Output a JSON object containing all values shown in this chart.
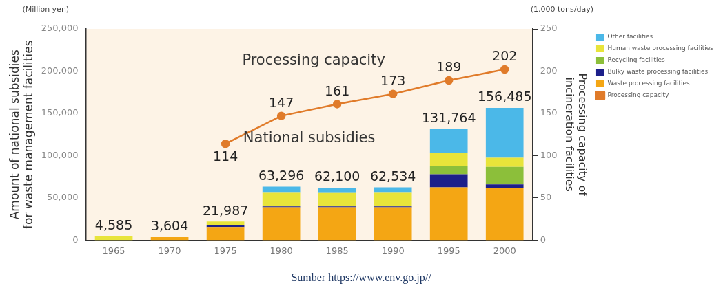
{
  "chart_data": {
    "type": "bar",
    "stacked": true,
    "ylabel": "Amount of national subsidies for waste management facilities",
    "y2label": "Processing capacity of incineration facilities",
    "categories": [
      "1965",
      "1970",
      "1975",
      "1980",
      "1985",
      "1990",
      "1995",
      "2000"
    ],
    "series": [
      {
        "name": "Waste processing facilities",
        "color": "#f4a614",
        "values": [
          0,
          3604,
          15500,
          39000,
          39000,
          39000,
          62600,
          61300
        ]
      },
      {
        "name": "Bulky waste processing facilities",
        "color": "#1c1f8a",
        "values": [
          0,
          0,
          2000,
          1000,
          1000,
          1000,
          15400,
          4600
        ]
      },
      {
        "name": "Recycling facilities",
        "color": "#8cbf3a",
        "values": [
          0,
          0,
          0,
          0,
          0,
          0,
          9600,
          20900
        ]
      },
      {
        "name": "Human waste processing facilities",
        "color": "#e8e43a",
        "values": [
          4585,
          0,
          4487,
          16000,
          15800,
          16000,
          15400,
          10800
        ]
      },
      {
        "name": "Other facilities",
        "color": "#4bb8e8",
        "values": [
          0,
          0,
          0,
          7296,
          6300,
          6534,
          28764,
          58885
        ]
      },
      {
        "name": "Processing capacity",
        "type": "line",
        "axis": "y2",
        "color": "#e07b2a",
        "values": [
          null,
          null,
          114,
          147,
          161,
          173,
          189,
          202
        ],
        "value_labels": [
          null,
          null,
          "114",
          "147",
          "161",
          "173",
          "189",
          "202"
        ]
      }
    ],
    "totals": [
      "4,585",
      "3,604",
      "21,987",
      "63,296",
      "62,100",
      "62,534",
      "131,764",
      "156,485"
    ],
    "ylim": [
      0,
      250000
    ],
    "yticks": [
      0,
      {
        "value": 50000,
        "label": "50,000"
      },
      {
        "value": 100000,
        "label": "100,000"
      },
      {
        "value": 150000,
        "label": "150,000"
      },
      {
        "value": 200000,
        "label": "200,000"
      },
      {
        "value": 250000,
        "label": "250,000"
      }
    ],
    "y2lim": [
      0,
      250
    ],
    "y2ticks": [
      0,
      50,
      100,
      150,
      200,
      250
    ],
    "marker": "circle",
    "grid": false,
    "legend": "top right",
    "annotations": [
      "Processing capacity",
      "National subsidies",
      "(Million yen)",
      "(1,000 tons/day)",
      "Sumber https://www.env.go.jp//"
    ]
  }
}
